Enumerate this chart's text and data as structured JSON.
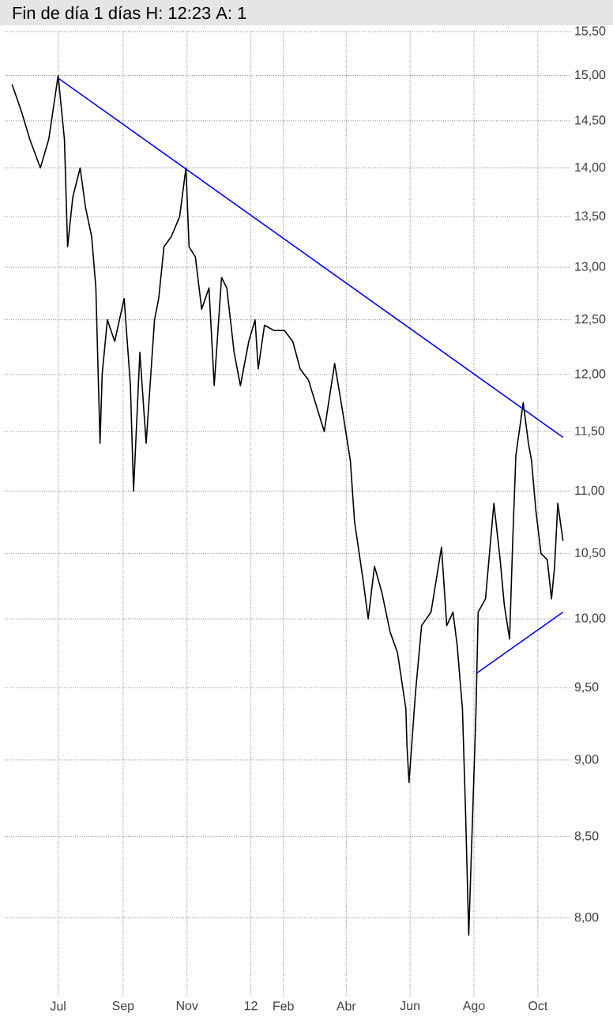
{
  "chart_data": {
    "type": "line",
    "title": "Fin de día 1 días H: 12:23 A: 1",
    "xlim": [
      "2011-05-11",
      "2012-11-01"
    ],
    "xticks": [
      {
        "value": "2011-07-01",
        "label": "Jul"
      },
      {
        "value": "2011-09-01",
        "label": "Sep"
      },
      {
        "value": "2011-11-01",
        "label": "Nov"
      },
      {
        "value": "2012-01-01",
        "label": "12"
      },
      {
        "value": "2012-02-01",
        "label": "Feb"
      },
      {
        "value": "2012-04-01",
        "label": "Abr"
      },
      {
        "value": "2012-06-01",
        "label": "Jun"
      },
      {
        "value": "2012-08-01",
        "label": "Ago"
      },
      {
        "value": "2012-10-01",
        "label": "Oct"
      }
    ],
    "log": "y",
    "ylim": [
      7.55,
      15.5
    ],
    "yticks": [
      {
        "value": 8,
        "label": "8,00"
      },
      {
        "value": 8.5,
        "label": "8,50"
      },
      {
        "value": 9,
        "label": "9,00"
      },
      {
        "value": 9.5,
        "label": "9,50"
      },
      {
        "value": 10,
        "label": "10,00"
      },
      {
        "value": 10.5,
        "label": "10,50"
      },
      {
        "value": 11,
        "label": "11,00"
      },
      {
        "value": 11.5,
        "label": "11,50"
      },
      {
        "value": 12,
        "label": "12,00"
      },
      {
        "value": 12.5,
        "label": "12,50"
      },
      {
        "value": 13,
        "label": "13,00"
      },
      {
        "value": 13.5,
        "label": "13,50"
      },
      {
        "value": 14,
        "label": "14,00"
      },
      {
        "value": 14.5,
        "label": "14,50"
      },
      {
        "value": 15,
        "label": "15,00"
      },
      {
        "value": 15.5,
        "label": "15,50"
      }
    ],
    "grid": true,
    "series": [
      {
        "color": "#000000",
        "x": [
          "2011-05-18",
          "2011-05-27",
          "2011-06-04",
          "2011-06-14",
          "2011-06-22",
          "2011-07-01",
          "2011-07-07",
          "2011-07-10",
          "2011-07-15",
          "2011-07-22",
          "2011-07-27",
          "2011-08-02",
          "2011-08-06",
          "2011-08-10",
          "2011-08-12",
          "2011-08-17",
          "2011-08-24",
          "2011-09-02",
          "2011-09-08",
          "2011-09-11",
          "2011-09-17",
          "2011-09-23",
          "2011-10-01",
          "2011-10-05",
          "2011-10-10",
          "2011-10-17",
          "2011-10-25",
          "2011-10-31",
          "2011-11-03",
          "2011-11-09",
          "2011-11-15",
          "2011-11-22",
          "2011-11-27",
          "2011-12-04",
          "2011-12-09",
          "2011-12-16",
          "2011-12-22",
          "2011-12-30",
          "2012-01-05",
          "2012-01-08",
          "2012-01-14",
          "2012-01-23",
          "2012-02-02",
          "2012-02-10",
          "2012-02-17",
          "2012-02-25",
          "2012-03-11",
          "2012-03-21",
          "2012-03-29",
          "2012-04-05",
          "2012-04-09",
          "2012-04-17",
          "2012-04-22",
          "2012-04-28",
          "2012-05-05",
          "2012-05-13",
          "2012-05-20",
          "2012-05-28",
          "2012-05-29",
          "2012-05-31",
          "2012-06-06",
          "2012-06-12",
          "2012-06-21",
          "2012-07-01",
          "2012-07-06",
          "2012-07-12",
          "2012-07-16",
          "2012-07-21",
          "2012-07-24",
          "2012-07-27",
          "2012-07-31",
          "2012-08-03",
          "2012-08-05",
          "2012-08-12",
          "2012-08-20",
          "2012-08-26",
          "2012-08-30",
          "2012-09-04",
          "2012-09-07",
          "2012-09-10",
          "2012-09-14",
          "2012-09-17",
          "2012-09-22",
          "2012-09-25",
          "2012-09-29",
          "2012-10-04",
          "2012-10-10",
          "2012-10-14",
          "2012-10-17",
          "2012-10-20",
          "2012-10-25"
        ],
        "values": [
          14.9,
          14.6,
          14.3,
          14.0,
          14.3,
          15.0,
          14.3,
          13.2,
          13.7,
          14.0,
          13.6,
          13.3,
          12.8,
          11.4,
          12.0,
          12.5,
          12.3,
          12.7,
          11.9,
          11.0,
          12.2,
          11.4,
          12.5,
          12.7,
          13.2,
          13.3,
          13.5,
          14.0,
          13.2,
          13.1,
          12.6,
          12.8,
          11.9,
          12.9,
          12.8,
          12.2,
          11.9,
          12.3,
          12.5,
          12.05,
          12.45,
          12.4,
          12.4,
          12.3,
          12.05,
          11.95,
          11.5,
          12.1,
          11.65,
          11.25,
          10.75,
          10.3,
          10.0,
          10.4,
          10.2,
          9.9,
          9.75,
          9.35,
          9.1,
          8.85,
          9.45,
          9.95,
          10.05,
          10.55,
          9.95,
          10.05,
          9.8,
          9.35,
          8.65,
          7.9,
          8.7,
          9.35,
          10.05,
          10.15,
          10.9,
          10.45,
          10.1,
          9.85,
          10.6,
          11.3,
          11.55,
          11.75,
          11.4,
          11.25,
          10.85,
          10.5,
          10.45,
          10.15,
          10.4,
          10.9,
          10.6
        ]
      },
      {
        "type": "line",
        "color": "#0000ff",
        "x": [
          "2011-07-01",
          "2012-10-25"
        ],
        "values": [
          14.97,
          11.45
        ]
      },
      {
        "type": "line",
        "color": "#0000ff",
        "x": [
          "2012-08-03",
          "2012-10-25"
        ],
        "values": [
          9.6,
          10.05
        ]
      }
    ]
  }
}
